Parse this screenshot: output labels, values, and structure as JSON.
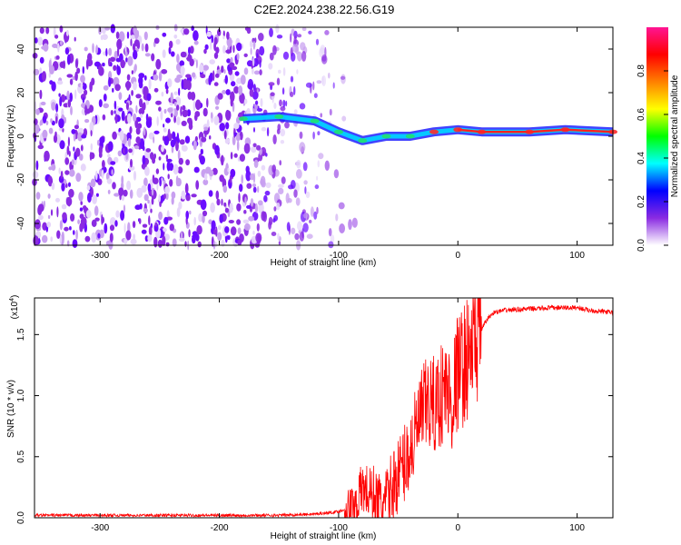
{
  "title": "C2E2.2024.238.22.56.G19",
  "chart_data": [
    {
      "type": "heatmap",
      "xlabel": "Height of straight line (km)",
      "ylabel": "Frequency (Hz)",
      "xlim": [
        -355,
        130
      ],
      "ylim": [
        -50,
        50
      ],
      "xticks": [
        -300,
        -200,
        -100,
        0,
        100
      ],
      "yticks": [
        -40,
        -20,
        0,
        20,
        40
      ],
      "colorbar": {
        "label": "Normalized spectral amplitude",
        "range": [
          0,
          1
        ],
        "ticks": [
          0.0,
          0.2,
          0.4,
          0.6,
          0.8
        ],
        "tick_labels": [
          "0.0",
          "0.2",
          "0.4",
          "0.6",
          "0.8"
        ],
        "colors": [
          "#ffffff",
          "#8a2be2",
          "#0000ff",
          "#00ffff",
          "#00ff00",
          "#ffff00",
          "#ff8000",
          "#ff0000",
          "#ff1493"
        ]
      },
      "ridge": [
        {
          "x": -180,
          "y": 8
        },
        {
          "x": -150,
          "y": 9
        },
        {
          "x": -120,
          "y": 7
        },
        {
          "x": -100,
          "y": 2
        },
        {
          "x": -80,
          "y": -2
        },
        {
          "x": -60,
          "y": 0
        },
        {
          "x": -40,
          "y": 0
        },
        {
          "x": -20,
          "y": 2
        },
        {
          "x": 0,
          "y": 3
        },
        {
          "x": 20,
          "y": 2
        },
        {
          "x": 60,
          "y": 2
        },
        {
          "x": 90,
          "y": 3
        },
        {
          "x": 130,
          "y": 2
        }
      ],
      "noise_region_x": [
        -355,
        -125
      ]
    },
    {
      "type": "line",
      "xlabel": "Height of straight line (km)",
      "ylabel": "SNR (10 * v/v)",
      "y_multiplier_label": "(x10",
      "y_multiplier_exp": "4",
      "y_multiplier_close": ")",
      "xlim": [
        -355,
        130
      ],
      "ylim": [
        0,
        1.8
      ],
      "xticks": [
        -300,
        -200,
        -100,
        0,
        100
      ],
      "yticks": [
        0.0,
        0.5,
        1.0,
        1.5
      ],
      "ytick_labels": [
        "0.0",
        "0.5",
        "1.0",
        "1.5"
      ],
      "color": "#ff0000",
      "series": [
        {
          "x": [
            -355,
            -300,
            -250,
            -200,
            -150,
            -120,
            -100,
            -90,
            -85,
            -80,
            -75,
            -70,
            -65,
            -60,
            -55,
            -50,
            -45,
            -40,
            -35,
            -30,
            -25,
            -20,
            -15,
            -10,
            -5,
            0,
            5,
            10,
            15,
            20,
            25,
            30,
            40,
            60,
            80,
            100,
            110,
            120,
            130
          ],
          "y": [
            0.02,
            0.02,
            0.02,
            0.02,
            0.02,
            0.03,
            0.05,
            0.08,
            0.12,
            0.25,
            0.2,
            0.18,
            0.1,
            0.12,
            0.25,
            0.35,
            0.45,
            0.55,
            0.7,
            0.85,
            0.95,
            0.9,
            1.0,
            1.05,
            0.95,
            1.2,
            1.25,
            1.35,
            1.45,
            1.55,
            1.63,
            1.68,
            1.7,
            1.71,
            1.72,
            1.72,
            1.7,
            1.69,
            1.68
          ]
        }
      ]
    }
  ]
}
